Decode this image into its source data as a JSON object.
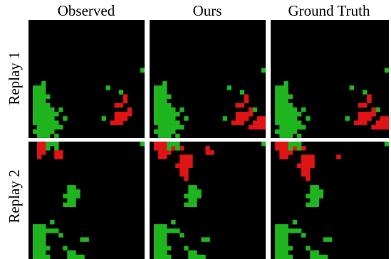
{
  "figure": {
    "columns": [
      "Observed",
      "Ours",
      "Ground Truth"
    ],
    "rows": [
      "Replay 1",
      "Replay 2"
    ]
  },
  "colors": {
    "background": "#000000",
    "team_a": "#1fb51f",
    "team_b": "#e01414"
  },
  "grid": {
    "cols": 27,
    "rows": 27
  },
  "clusters": {
    "r1_green_big": [
      [
        1,
        15
      ],
      [
        2,
        15
      ],
      [
        3,
        15
      ],
      [
        1,
        16
      ],
      [
        2,
        16
      ],
      [
        3,
        16
      ],
      [
        1,
        17
      ],
      [
        2,
        17
      ],
      [
        3,
        17
      ],
      [
        4,
        17
      ],
      [
        1,
        18
      ],
      [
        2,
        18
      ],
      [
        3,
        18
      ],
      [
        1,
        19
      ],
      [
        2,
        19
      ],
      [
        3,
        19
      ],
      [
        4,
        19
      ],
      [
        1,
        20
      ],
      [
        2,
        20
      ],
      [
        3,
        20
      ],
      [
        4,
        20
      ],
      [
        5,
        20
      ],
      [
        1,
        21
      ],
      [
        2,
        21
      ],
      [
        3,
        21
      ],
      [
        4,
        21
      ],
      [
        5,
        21
      ],
      [
        6,
        21
      ],
      [
        1,
        22
      ],
      [
        2,
        22
      ],
      [
        3,
        22
      ],
      [
        4,
        22
      ],
      [
        5,
        22
      ],
      [
        1,
        23
      ],
      [
        2,
        23
      ],
      [
        3,
        23
      ],
      [
        4,
        23
      ],
      [
        5,
        23
      ],
      [
        6,
        23
      ],
      [
        2,
        24
      ],
      [
        3,
        24
      ],
      [
        4,
        24
      ],
      [
        5,
        24
      ],
      [
        6,
        24
      ],
      [
        7,
        24
      ],
      [
        1,
        25
      ],
      [
        2,
        25
      ],
      [
        3,
        25
      ],
      [
        4,
        25
      ],
      [
        5,
        25
      ],
      [
        2,
        26
      ],
      [
        3,
        26
      ],
      [
        4,
        26
      ],
      [
        6,
        26
      ],
      [
        8,
        22
      ],
      [
        7,
        20
      ],
      [
        3,
        14
      ]
    ],
    "r1_green_dots": [
      [
        26,
        11
      ],
      [
        17,
        22
      ],
      [
        20,
        19
      ],
      [
        18,
        15
      ],
      [
        21,
        16
      ]
    ],
    "r1_red_obs": [
      [
        20,
        19
      ],
      [
        21,
        19
      ],
      [
        22,
        18
      ],
      [
        20,
        21
      ],
      [
        21,
        21
      ],
      [
        22,
        21
      ],
      [
        23,
        21
      ],
      [
        20,
        22
      ],
      [
        21,
        22
      ],
      [
        22,
        22
      ],
      [
        19,
        23
      ],
      [
        20,
        23
      ],
      [
        21,
        23
      ],
      [
        22,
        22
      ],
      [
        23,
        20
      ],
      [
        22,
        17
      ]
    ],
    "r1_red_ext": [
      [
        25,
        22
      ],
      [
        26,
        22
      ],
      [
        24,
        23
      ],
      [
        25,
        23
      ],
      [
        26,
        23
      ],
      [
        27,
        23
      ],
      [
        24,
        24
      ],
      [
        25,
        24
      ],
      [
        26,
        24
      ],
      [
        27,
        24
      ],
      [
        23,
        24
      ],
      [
        28,
        22
      ]
    ],
    "r1_green_pred_extra": [
      [
        24,
        20
      ]
    ],
    "r2_green_top": [
      [
        4,
        0
      ],
      [
        5,
        0
      ],
      [
        6,
        0
      ],
      [
        4,
        1
      ],
      [
        6,
        1
      ],
      [
        26,
        0
      ]
    ],
    "r2_red_top_obs": [
      [
        2,
        0
      ],
      [
        3,
        0
      ],
      [
        2,
        1
      ],
      [
        3,
        1
      ],
      [
        2,
        2
      ],
      [
        3,
        2
      ],
      [
        2,
        3
      ],
      [
        6,
        2
      ],
      [
        7,
        2
      ],
      [
        6,
        3
      ],
      [
        7,
        3
      ]
    ],
    "r2_red_top_gt": [
      [
        1,
        0
      ],
      [
        2,
        0
      ],
      [
        3,
        0
      ],
      [
        4,
        0
      ],
      [
        5,
        0
      ],
      [
        1,
        1
      ],
      [
        2,
        1
      ],
      [
        3,
        1
      ],
      [
        4,
        1
      ],
      [
        5,
        1
      ],
      [
        2,
        2
      ],
      [
        3,
        2
      ],
      [
        4,
        2
      ],
      [
        2,
        3
      ],
      [
        3,
        3
      ],
      [
        6,
        1
      ],
      [
        7,
        1
      ]
    ],
    "r2_red_mid": [
      [
        7,
        3
      ],
      [
        8,
        3
      ],
      [
        9,
        3
      ],
      [
        7,
        4
      ],
      [
        8,
        4
      ],
      [
        9,
        4
      ],
      [
        6,
        5
      ],
      [
        7,
        5
      ],
      [
        8,
        5
      ],
      [
        9,
        5
      ],
      [
        7,
        6
      ],
      [
        8,
        6
      ],
      [
        7,
        7
      ],
      [
        8,
        7
      ],
      [
        8,
        8
      ]
    ],
    "r2_red_small": [
      [
        13,
        1
      ],
      [
        13,
        2
      ],
      [
        14,
        2
      ]
    ],
    "r2_green_mid": [
      [
        9,
        10
      ],
      [
        10,
        10
      ],
      [
        9,
        11
      ],
      [
        10,
        11
      ],
      [
        11,
        11
      ],
      [
        8,
        12
      ],
      [
        9,
        12
      ],
      [
        10,
        12
      ],
      [
        9,
        13
      ],
      [
        10,
        13
      ],
      [
        11,
        12
      ],
      [
        8,
        14
      ],
      [
        9,
        14
      ],
      [
        10,
        14
      ]
    ],
    "r2_green_bottom": [
      [
        1,
        19
      ],
      [
        2,
        19
      ],
      [
        3,
        19
      ],
      [
        1,
        20
      ],
      [
        2,
        20
      ],
      [
        3,
        20
      ],
      [
        4,
        20
      ],
      [
        5,
        20
      ],
      [
        6,
        20
      ],
      [
        1,
        21
      ],
      [
        2,
        21
      ],
      [
        3,
        21
      ],
      [
        7,
        21
      ],
      [
        1,
        22
      ],
      [
        2,
        22
      ],
      [
        3,
        22
      ],
      [
        1,
        23
      ],
      [
        2,
        23
      ],
      [
        3,
        23
      ],
      [
        1,
        24
      ],
      [
        2,
        24
      ],
      [
        3,
        24
      ],
      [
        4,
        24
      ],
      [
        1,
        25
      ],
      [
        2,
        25
      ],
      [
        3,
        25
      ],
      [
        1,
        26
      ],
      [
        2,
        26
      ],
      [
        3,
        26
      ],
      [
        4,
        26
      ],
      [
        12,
        22
      ],
      [
        13,
        22
      ],
      [
        8,
        24
      ],
      [
        9,
        25
      ],
      [
        10,
        25
      ],
      [
        9,
        26
      ],
      [
        10,
        26
      ],
      [
        11,
        26
      ],
      [
        12,
        26
      ],
      [
        5,
        18
      ]
    ]
  }
}
